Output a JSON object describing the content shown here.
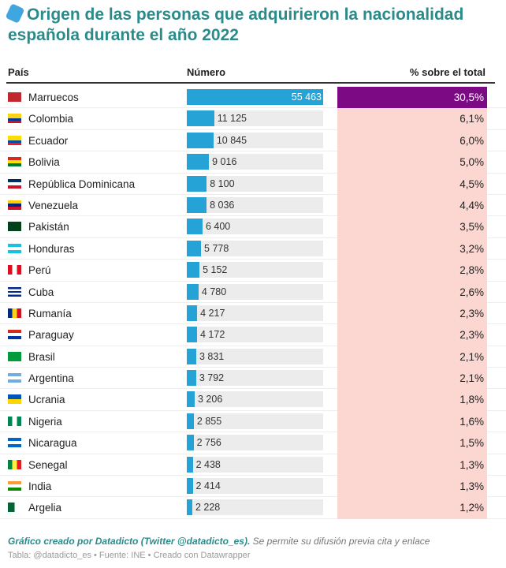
{
  "title": "Origen de las personas que adquirieron la nacionalidad española durante el año 2022",
  "icon": "luggage-icon",
  "chart_data": {
    "type": "table",
    "columns": [
      "País",
      "Número",
      "% sobre el total"
    ],
    "max_value": 55463,
    "rows": [
      {
        "country": "Marruecos",
        "value": 55463,
        "value_label": "55 463",
        "pct": "30,5%",
        "flag": [
          "#c1272d"
        ]
      },
      {
        "country": "Colombia",
        "value": 11125,
        "value_label": "11 125",
        "pct": "6,1%",
        "flag": [
          "#fcd116",
          "#fcd116",
          "#003893",
          "#ce1126"
        ]
      },
      {
        "country": "Ecuador",
        "value": 10845,
        "value_label": "10 845",
        "pct": "6,0%",
        "flag": [
          "#ffdd00",
          "#ffdd00",
          "#034ea2",
          "#ed1c24"
        ]
      },
      {
        "country": "Bolivia",
        "value": 9016,
        "value_label": "9 016",
        "pct": "5,0%",
        "flag": [
          "#d52b1e",
          "#f9e300",
          "#007934"
        ]
      },
      {
        "country": "República Dominicana",
        "value": 8100,
        "value_label": "8 100",
        "pct": "4,5%",
        "flag": [
          "#002d62",
          "#ffffff",
          "#ce1126"
        ]
      },
      {
        "country": "Venezuela",
        "value": 8036,
        "value_label": "8 036",
        "pct": "4,4%",
        "flag": [
          "#ffcc00",
          "#00247d",
          "#cf142b"
        ]
      },
      {
        "country": "Pakistán",
        "value": 6400,
        "value_label": "6 400",
        "pct": "3,5%",
        "flag": [
          "#01411c"
        ]
      },
      {
        "country": "Honduras",
        "value": 5778,
        "value_label": "5 778",
        "pct": "3,2%",
        "flag": [
          "#18c3df",
          "#ffffff",
          "#18c3df"
        ]
      },
      {
        "country": "Perú",
        "value": 5152,
        "value_label": "5 152",
        "pct": "2,8%",
        "flag": [
          "#d91023",
          "#ffffff",
          "#d91023"
        ],
        "vertical": true
      },
      {
        "country": "Cuba",
        "value": 4780,
        "value_label": "4 780",
        "pct": "2,6%",
        "flag": [
          "#002a8f",
          "#ffffff",
          "#002a8f",
          "#ffffff",
          "#002a8f"
        ]
      },
      {
        "country": "Rumanía",
        "value": 4217,
        "value_label": "4 217",
        "pct": "2,3%",
        "flag": [
          "#002b7f",
          "#fcd116",
          "#ce1126"
        ],
        "vertical": true
      },
      {
        "country": "Paraguay",
        "value": 4172,
        "value_label": "4 172",
        "pct": "2,3%",
        "flag": [
          "#d52b1e",
          "#ffffff",
          "#0038a8"
        ]
      },
      {
        "country": "Brasil",
        "value": 3831,
        "value_label": "3 831",
        "pct": "2,1%",
        "flag": [
          "#009c3b"
        ]
      },
      {
        "country": "Argentina",
        "value": 3792,
        "value_label": "3 792",
        "pct": "2,1%",
        "flag": [
          "#74acdf",
          "#ffffff",
          "#74acdf"
        ]
      },
      {
        "country": "Ucrania",
        "value": 3206,
        "value_label": "3 206",
        "pct": "1,8%",
        "flag": [
          "#0057b7",
          "#ffd700"
        ]
      },
      {
        "country": "Nigeria",
        "value": 2855,
        "value_label": "2 855",
        "pct": "1,6%",
        "flag": [
          "#008751",
          "#ffffff",
          "#008751"
        ],
        "vertical": true
      },
      {
        "country": "Nicaragua",
        "value": 2756,
        "value_label": "2 756",
        "pct": "1,5%",
        "flag": [
          "#0067c6",
          "#ffffff",
          "#0067c6"
        ]
      },
      {
        "country": "Senegal",
        "value": 2438,
        "value_label": "2 438",
        "pct": "1,3%",
        "flag": [
          "#00853f",
          "#fdef42",
          "#e31b23"
        ],
        "vertical": true
      },
      {
        "country": "India",
        "value": 2414,
        "value_label": "2 414",
        "pct": "1,3%",
        "flag": [
          "#ff9933",
          "#ffffff",
          "#138808"
        ]
      },
      {
        "country": "Argelia",
        "value": 2228,
        "value_label": "2 228",
        "pct": "1,2%",
        "flag": [
          "#006633",
          "#ffffff"
        ],
        "vertical": true
      }
    ]
  },
  "footer": {
    "credit": "Gráfico creado por Datadicto (Twitter @datadicto_es).",
    "note": " Se permite su difusión previa cita y enlace",
    "source": "Tabla: @datadicto_es • Fuente: INE • Creado con Datawrapper"
  },
  "colors": {
    "title": "#2b8a8a",
    "bar": "#25a2d6",
    "top_cell": "#7c0a84",
    "cell": "#fcd7d1"
  }
}
